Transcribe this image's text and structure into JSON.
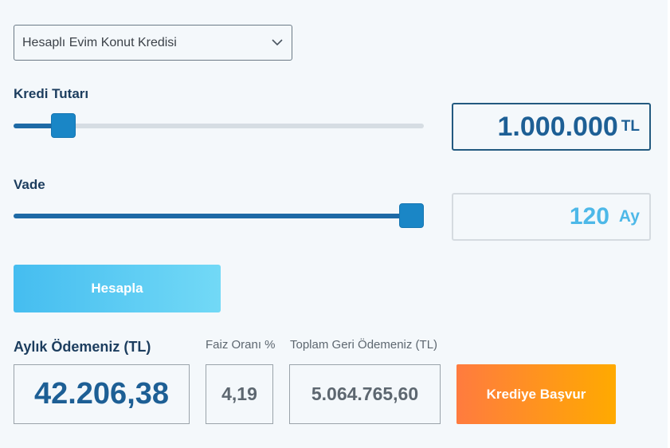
{
  "loan_type": {
    "selected": "Hesaplı Evim Konut Kredisi",
    "icon": "chevron-down-icon"
  },
  "amount": {
    "label": "Kredi Tutarı",
    "value": "1.000.000",
    "unit": "TL",
    "slider_fraction": 0.12
  },
  "term": {
    "label": "Vade",
    "value": "120",
    "unit": "Ay",
    "slider_fraction": 1.0
  },
  "calculate_button": "Hesapla",
  "results": {
    "monthly_label": "Aylık Ödemeniz (TL)",
    "monthly_value": "42.206,38",
    "rate_label": "Faiz Oranı %",
    "rate_value": "4,19",
    "total_label": "Toplam Geri Ödemeniz (TL)",
    "total_value": "5.064.765,60"
  },
  "apply_button": "Krediye Başvur",
  "colors": {
    "primary_dark": "#1c3d5e",
    "accent_blue": "#1a86c6",
    "light_blue": "#4db8e8",
    "orange_start": "#ff7b3f",
    "orange_end": "#ffaa00"
  }
}
